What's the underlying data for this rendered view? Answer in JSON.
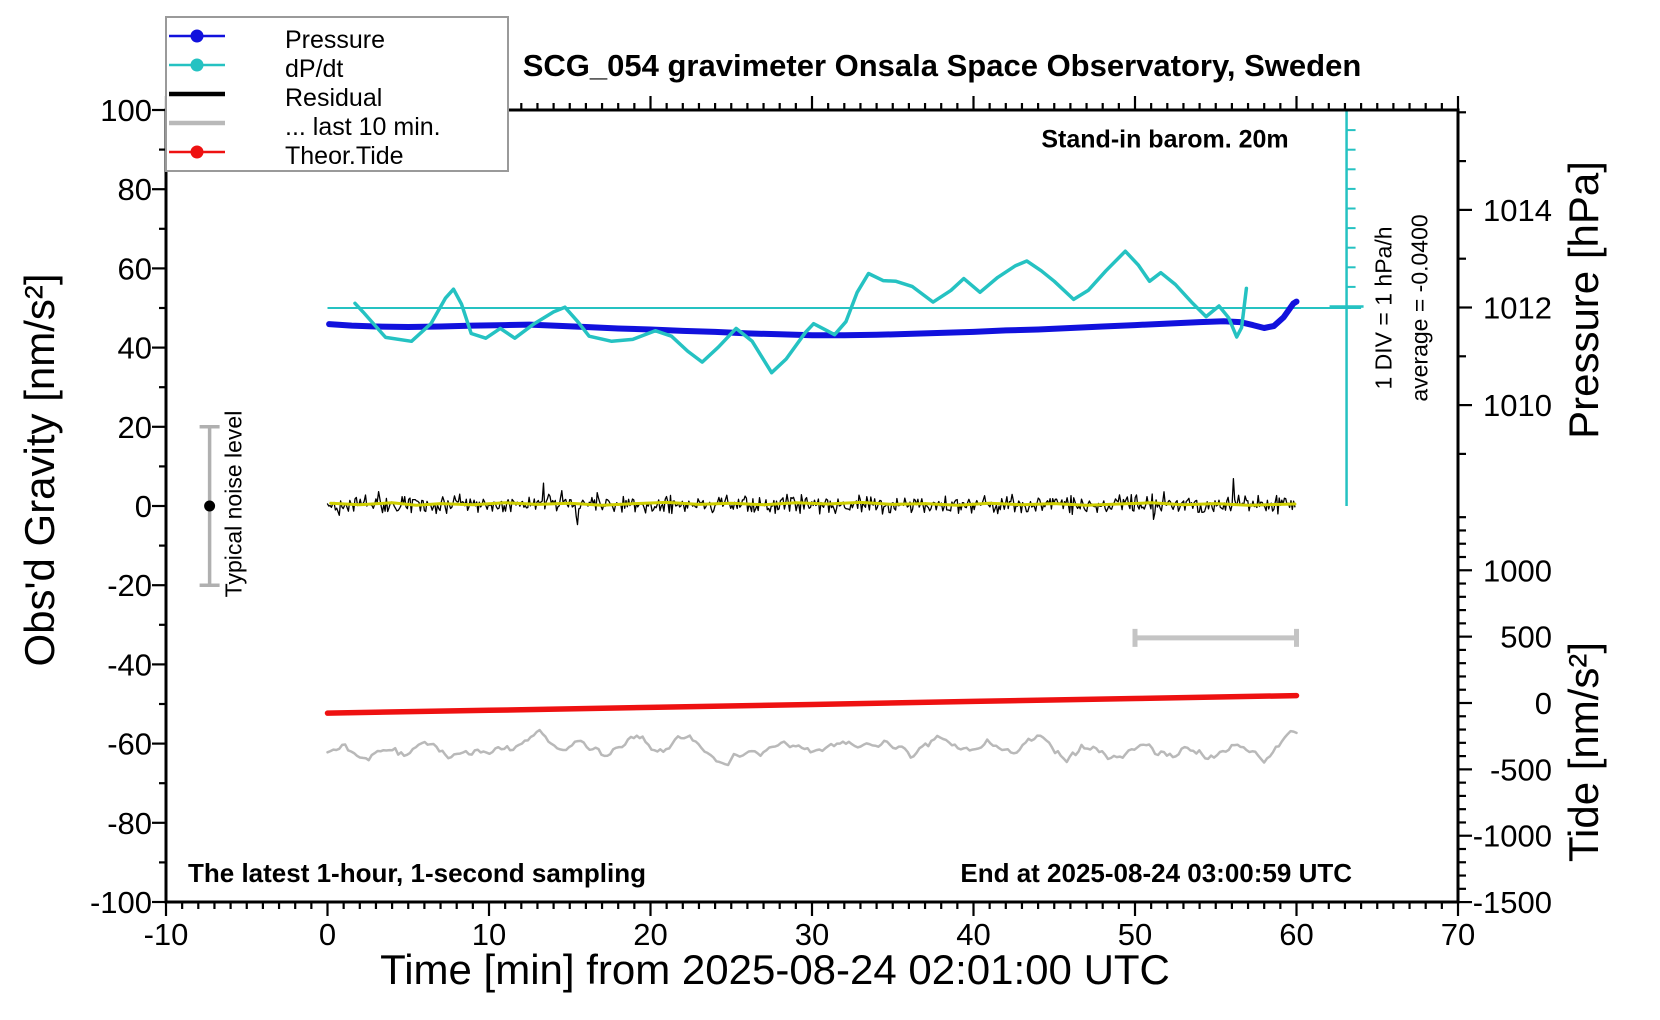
{
  "title": "SCG_054 gravimeter Onsala Space Observatory, Sweden",
  "xlabel": "Time [min] from 2025-08-24 02:01:00 UTC",
  "ylabel_left": "Obs'd Gravity [nm/s²]",
  "ylabel_pressure": "Pressure [hPa]",
  "ylabel_tide": "Tide [nm/s²]",
  "annotations": {
    "barometer": "Stand-in barom. 20m",
    "div_scale": "1 DIV = 1 hPa/h",
    "average": "average = -0.0400",
    "noise_level": "Typical noise level",
    "sampling": "The latest 1-hour, 1-second sampling",
    "end_time": "End at 2025-08-24 03:00:59 UTC"
  },
  "legend": {
    "items": [
      {
        "label": "Pressure",
        "color": "#1111dd",
        "marker": "dot"
      },
      {
        "label": "dP/dt",
        "color": "#25c2c2",
        "marker": "dot"
      },
      {
        "label": "Residual",
        "color": "#000000",
        "marker": "line"
      },
      {
        "label": "... last 10 min.",
        "color": "#b9b9b9",
        "marker": "line"
      },
      {
        "label": "Theor.Tide",
        "color": "#ee1111",
        "marker": "dot"
      }
    ]
  },
  "colors": {
    "pressure": "#1111dd",
    "dpdt": "#25c2c2",
    "residual": "#000000",
    "residual_smooth": "#cfcf00",
    "last10": "#b9b9b9",
    "tide": "#ee1111",
    "noise_bar": "#b0b0b0",
    "range_bar": "#c4c4c4"
  },
  "chart_data": {
    "type": "line",
    "title": "SCG_054 gravimeter Onsala Space Observatory, Sweden",
    "xlabel": "Time [min] from 2025-08-24 02:01:00 UTC",
    "x_axis": {
      "min": -10,
      "max": 70,
      "major_step": 10,
      "minor_step": 1,
      "labels": [
        -10,
        0,
        10,
        20,
        30,
        40,
        50,
        60,
        70
      ]
    },
    "gravity_axis": {
      "label": "Obs'd Gravity [nm/s²]",
      "min": -100,
      "max": 100,
      "major_step": 20,
      "minor_step": 10,
      "labels": [
        100,
        80,
        60,
        40,
        20,
        0,
        -20,
        -40,
        -60,
        -80,
        -100
      ]
    },
    "pressure_axis": {
      "label": "Pressure [hPa]",
      "labels": [
        1014,
        1012,
        1010
      ],
      "minor_step": 1,
      "tick_min": 1009,
      "tick_max": 1016
    },
    "tide_axis": {
      "label": "Tide [nm/s²]",
      "labels": [
        1000,
        500,
        0,
        -500,
        -1000,
        -1500
      ],
      "major_step": 500,
      "minor_step": 100,
      "tick_min": -1500,
      "tick_max": 1400
    },
    "dpdt_scale": {
      "divisions": 10,
      "div_label": "1 DIV = 1 hPa/h",
      "average": -0.04
    },
    "series": [
      {
        "name": "Pressure",
        "units": "hPa",
        "axis": "pressure",
        "points": [
          [
            0.1,
            1011.66
          ],
          [
            1.5,
            1011.63
          ],
          [
            3,
            1011.61
          ],
          [
            5,
            1011.6
          ],
          [
            7,
            1011.61
          ],
          [
            9,
            1011.63
          ],
          [
            11,
            1011.64
          ],
          [
            12.5,
            1011.65
          ],
          [
            14,
            1011.63
          ],
          [
            16,
            1011.6
          ],
          [
            18,
            1011.57
          ],
          [
            20,
            1011.55
          ],
          [
            22,
            1011.52
          ],
          [
            24,
            1011.5
          ],
          [
            26,
            1011.47
          ],
          [
            28,
            1011.45
          ],
          [
            30,
            1011.43
          ],
          [
            32,
            1011.43
          ],
          [
            34,
            1011.44
          ],
          [
            36,
            1011.46
          ],
          [
            38,
            1011.48
          ],
          [
            40,
            1011.5
          ],
          [
            42,
            1011.53
          ],
          [
            44,
            1011.55
          ],
          [
            46,
            1011.58
          ],
          [
            48,
            1011.61
          ],
          [
            50,
            1011.64
          ],
          [
            52,
            1011.67
          ],
          [
            54,
            1011.7
          ],
          [
            55.5,
            1011.72
          ],
          [
            56.5,
            1011.7
          ],
          [
            57.3,
            1011.64
          ],
          [
            58,
            1011.58
          ],
          [
            58.6,
            1011.62
          ],
          [
            59.2,
            1011.8
          ],
          [
            59.8,
            1012.08
          ],
          [
            60,
            1012.12
          ]
        ]
      },
      {
        "name": "dP/dt",
        "units": "hPa/h",
        "axis": "dpdt",
        "points": [
          [
            1.7,
            0.12
          ],
          [
            2.2,
            -0.1
          ],
          [
            3.6,
            -0.75
          ],
          [
            5.2,
            -0.85
          ],
          [
            6.4,
            -0.4
          ],
          [
            7.3,
            0.25
          ],
          [
            7.8,
            0.48
          ],
          [
            8.3,
            0.1
          ],
          [
            8.9,
            -0.65
          ],
          [
            9.8,
            -0.77
          ],
          [
            10.7,
            -0.52
          ],
          [
            11.6,
            -0.77
          ],
          [
            12.8,
            -0.4
          ],
          [
            14,
            -0.1
          ],
          [
            14.7,
            0.02
          ],
          [
            15.5,
            -0.35
          ],
          [
            16.2,
            -0.72
          ],
          [
            17.6,
            -0.85
          ],
          [
            18.9,
            -0.8
          ],
          [
            20.3,
            -0.58
          ],
          [
            21.3,
            -0.72
          ],
          [
            22.3,
            -1.1
          ],
          [
            23.2,
            -1.38
          ],
          [
            24.2,
            -1.0
          ],
          [
            25.3,
            -0.52
          ],
          [
            26.3,
            -0.85
          ],
          [
            27.5,
            -1.65
          ],
          [
            28.4,
            -1.3
          ],
          [
            29.6,
            -0.62
          ],
          [
            30.1,
            -0.4
          ],
          [
            30.8,
            -0.55
          ],
          [
            31.4,
            -0.68
          ],
          [
            32.1,
            -0.35
          ],
          [
            32.8,
            0.4
          ],
          [
            33.5,
            0.88
          ],
          [
            34.4,
            0.7
          ],
          [
            35.2,
            0.68
          ],
          [
            36.2,
            0.55
          ],
          [
            37.5,
            0.15
          ],
          [
            38.6,
            0.45
          ],
          [
            39.4,
            0.75
          ],
          [
            40.4,
            0.4
          ],
          [
            41.5,
            0.78
          ],
          [
            42.6,
            1.08
          ],
          [
            43.3,
            1.2
          ],
          [
            44.2,
            0.95
          ],
          [
            45.0,
            0.68
          ],
          [
            46.2,
            0.22
          ],
          [
            47.1,
            0.45
          ],
          [
            48.2,
            0.95
          ],
          [
            49.4,
            1.45
          ],
          [
            50.2,
            1.1
          ],
          [
            50.9,
            0.68
          ],
          [
            51.6,
            0.9
          ],
          [
            52.5,
            0.6
          ],
          [
            53.5,
            0.15
          ],
          [
            54.4,
            -0.22
          ],
          [
            55.2,
            0.05
          ],
          [
            55.8,
            -0.25
          ],
          [
            56.3,
            -0.74
          ],
          [
            56.6,
            -0.5
          ],
          [
            56.9,
            0.5
          ]
        ]
      },
      {
        "name": "Theor.Tide",
        "units": "nm/s2",
        "axis": "tide",
        "points": [
          [
            0,
            -76
          ],
          [
            10,
            -55
          ],
          [
            20,
            -33
          ],
          [
            30,
            -11
          ],
          [
            40,
            12
          ],
          [
            50,
            34
          ],
          [
            60,
            56
          ]
        ]
      },
      {
        "name": "Residual smoothed",
        "units": "nm/s2",
        "axis": "gravity",
        "points": [
          [
            0.2,
            0.7
          ],
          [
            2,
            0.3
          ],
          [
            4,
            0.8
          ],
          [
            5.5,
            0.2
          ],
          [
            7,
            0.6
          ],
          [
            9,
            0.3
          ],
          [
            11,
            0.8
          ],
          [
            13,
            0.4
          ],
          [
            15,
            0.7
          ],
          [
            17,
            0.2
          ],
          [
            19,
            0.6
          ],
          [
            21,
            0.9
          ],
          [
            23,
            0.4
          ],
          [
            25,
            0.7
          ],
          [
            27,
            0.3
          ],
          [
            29,
            0.8
          ],
          [
            31,
            0.5
          ],
          [
            33,
            0.9
          ],
          [
            35,
            0.4
          ],
          [
            37,
            0.6
          ],
          [
            39,
            0.2
          ],
          [
            41,
            0.7
          ],
          [
            43,
            0.3
          ],
          [
            45,
            0.6
          ],
          [
            47,
            0.2
          ],
          [
            49,
            0.5
          ],
          [
            51,
            0.8
          ],
          [
            53,
            0.3
          ],
          [
            55,
            0.6
          ],
          [
            57,
            0.2
          ],
          [
            59,
            0.4
          ],
          [
            59.9,
            0.5
          ]
        ]
      },
      {
        "name": "Residual",
        "units": "nm/s2",
        "axis": "gravity",
        "appearance": "noise",
        "noise": {
          "x_start": 0,
          "x_end": 59.9,
          "points": 740,
          "mean": 0.4,
          "amplitude": 2.7,
          "spike_probability": 0.03,
          "spike_amplitude": 5.5,
          "seed": 42
        }
      },
      {
        "name": "... last 10 min.",
        "units": "nm/s2",
        "axis": "gravity",
        "appearance": "smooth-noise",
        "noise": {
          "x_start": 0,
          "x_end": 60,
          "points": 330,
          "mean": -61.6,
          "gain": 6.5,
          "smooth_window": 4,
          "seed": 7
        }
      }
    ],
    "markers": {
      "noise_errorbar": {
        "x_min": -7.3,
        "gravity_center": 0,
        "gravity_halfspan": 20
      },
      "last10_range_bar": {
        "x_from": 50,
        "x_to": 60,
        "gravity_y": -33.3
      },
      "dpdt_zero_line_gravity": 50
    }
  }
}
